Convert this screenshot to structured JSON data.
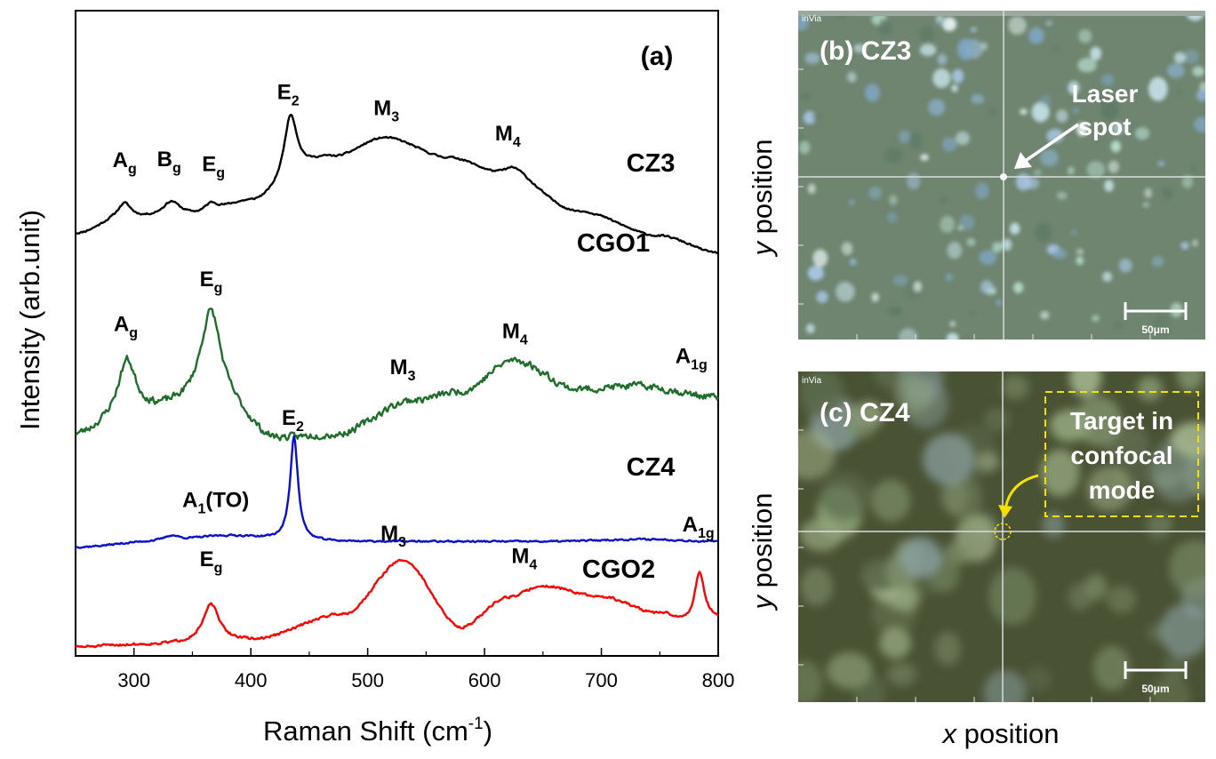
{
  "chart_data": [
    {
      "type": "line",
      "panel_label": "(a)",
      "xlabel": "Raman Shift (cm",
      "xlabel_sup": "-1",
      "xlabel_close": ")",
      "ylabel": "Intensity (arb.unit)",
      "xlim": [
        250,
        800
      ],
      "xticks": [
        300,
        400,
        500,
        600,
        700,
        800
      ],
      "y_ticks_labeled": false,
      "grid": false,
      "series": [
        {
          "name": "CZ3",
          "color": "#000000",
          "offset": 3.6,
          "amp": 1.0,
          "base": [
            [
              250,
              0.12
            ],
            [
              290,
              0.25
            ],
            [
              350,
              0.28
            ],
            [
              400,
              0.4
            ],
            [
              470,
              0.8
            ],
            [
              515,
              0.98
            ],
            [
              570,
              0.8
            ],
            [
              620,
              0.62
            ],
            [
              680,
              0.32
            ],
            [
              750,
              0.1
            ],
            [
              800,
              -0.05
            ]
          ],
          "peaks": [
            [
              292,
              0.14,
              7
            ],
            [
              332,
              0.13,
              9
            ],
            [
              366,
              0.08,
              7
            ],
            [
              434,
              0.6,
              7
            ],
            [
              625,
              0.1,
              14
            ]
          ],
          "noise": 0.012,
          "seed": 11,
          "peak_labels": [
            {
              "main": "A",
              "sub": "g",
              "x": 292,
              "dy": 0.32
            },
            {
              "main": "B",
              "sub": "g",
              "x": 330,
              "dy": 0.32
            },
            {
              "main": "E",
              "sub": "g",
              "x": 368,
              "dy": 0.28
            },
            {
              "main": "E",
              "sub": "2",
              "x": 432,
              "dy": 0.2
            },
            {
              "main": "M",
              "sub": "3",
              "x": 516,
              "dy": 0.2
            },
            {
              "main": "M",
              "sub": "4",
              "x": 620,
              "dy": 0.25
            }
          ]
        },
        {
          "name": "CGO1",
          "color": "#1e6e2a",
          "offset": 1.8,
          "amp": 1.0,
          "base": [
            [
              250,
              0.1
            ],
            [
              300,
              0.3
            ],
            [
              350,
              0.35
            ],
            [
              380,
              0.3
            ],
            [
              420,
              0.06
            ],
            [
              470,
              0.1
            ],
            [
              540,
              0.42
            ],
            [
              580,
              0.5
            ],
            [
              625,
              0.78
            ],
            [
              680,
              0.52
            ],
            [
              730,
              0.55
            ],
            [
              800,
              0.45
            ]
          ],
          "peaks": [
            [
              294,
              0.48,
              9
            ],
            [
              366,
              0.9,
              11
            ]
          ],
          "noise": 0.05,
          "seed": 23,
          "peak_labels": [
            {
              "main": "A",
              "sub": "g",
              "x": 293,
              "dy": 0.26
            },
            {
              "main": "E",
              "sub": "g",
              "x": 366,
              "dy": 0.22
            },
            {
              "main": "M",
              "sub": "3",
              "x": 530,
              "dy": 0.25
            },
            {
              "main": "M",
              "sub": "4",
              "x": 626,
              "dy": 0.2
            },
            {
              "main": "A",
              "sub": "1g",
              "x": 777,
              "dy": 0.28
            }
          ]
        },
        {
          "name": "CZ4",
          "color": "#0a10c8",
          "offset": 0.9,
          "amp": 1.0,
          "base": [
            [
              250,
              0.0
            ],
            [
              320,
              0.05
            ],
            [
              380,
              0.1
            ],
            [
              450,
              0.05
            ],
            [
              550,
              0.05
            ],
            [
              650,
              0.05
            ],
            [
              740,
              0.07
            ],
            [
              800,
              0.05
            ]
          ],
          "peaks": [
            [
              437,
              0.95,
              4
            ],
            [
              332,
              0.05,
              8
            ]
          ],
          "noise": 0.012,
          "seed": 37,
          "peak_labels": [
            {
              "main": "A",
              "sub": "1",
              "tail": "(TO)",
              "x": 370,
              "dy": 0.26
            },
            {
              "main": "E",
              "sub": "2",
              "x": 436,
              "dy": 0.15
            }
          ]
        },
        {
          "name": "CGO2",
          "color": "#ff0000",
          "offset": 0.0,
          "amp": 1.0,
          "base": [
            [
              250,
              0.0
            ],
            [
              300,
              0.02
            ],
            [
              400,
              0.06
            ],
            [
              480,
              0.3
            ],
            [
              530,
              0.78
            ],
            [
              580,
              0.18
            ],
            [
              620,
              0.45
            ],
            [
              650,
              0.55
            ],
            [
              700,
              0.45
            ],
            [
              750,
              0.3
            ],
            [
              775,
              0.22
            ],
            [
              800,
              0.25
            ]
          ],
          "peaks": [
            [
              366,
              0.34,
              8
            ],
            [
              784,
              0.45,
              5
            ]
          ],
          "noise": 0.018,
          "seed": 51,
          "peak_labels": [
            {
              "main": "E",
              "sub": "g",
              "x": 366,
              "dy": 0.34
            },
            {
              "main": "M",
              "sub": "3",
              "x": 522,
              "dy": 0.21
            },
            {
              "main": "M",
              "sub": "4",
              "x": 634,
              "dy": 0.26
            },
            {
              "main": "A",
              "sub": "1g",
              "x": 783,
              "dy": 0.38
            }
          ]
        }
      ],
      "series_labels": [
        "CZ3",
        "CGO1",
        "CZ4",
        "CGO2"
      ]
    }
  ],
  "panel_b": {
    "label": "(b) CZ3",
    "corner_text": "inVia",
    "annotation": [
      "Laser",
      "spot"
    ],
    "scale_bar": "50μm",
    "ylabel_var": "y",
    "ylabel_rest": " position",
    "bg_color": "#6f8570"
  },
  "panel_c": {
    "label": "(c) CZ4",
    "corner_text": "inVia",
    "annotation": [
      "Target in",
      "confocal",
      "mode"
    ],
    "annotation_color": "#f5e000",
    "scale_bar": "50μm",
    "ylabel_var": "y",
    "ylabel_rest": " position",
    "xlabel_var": "x",
    "xlabel_rest": " position",
    "bg_color": "#4a5234"
  }
}
